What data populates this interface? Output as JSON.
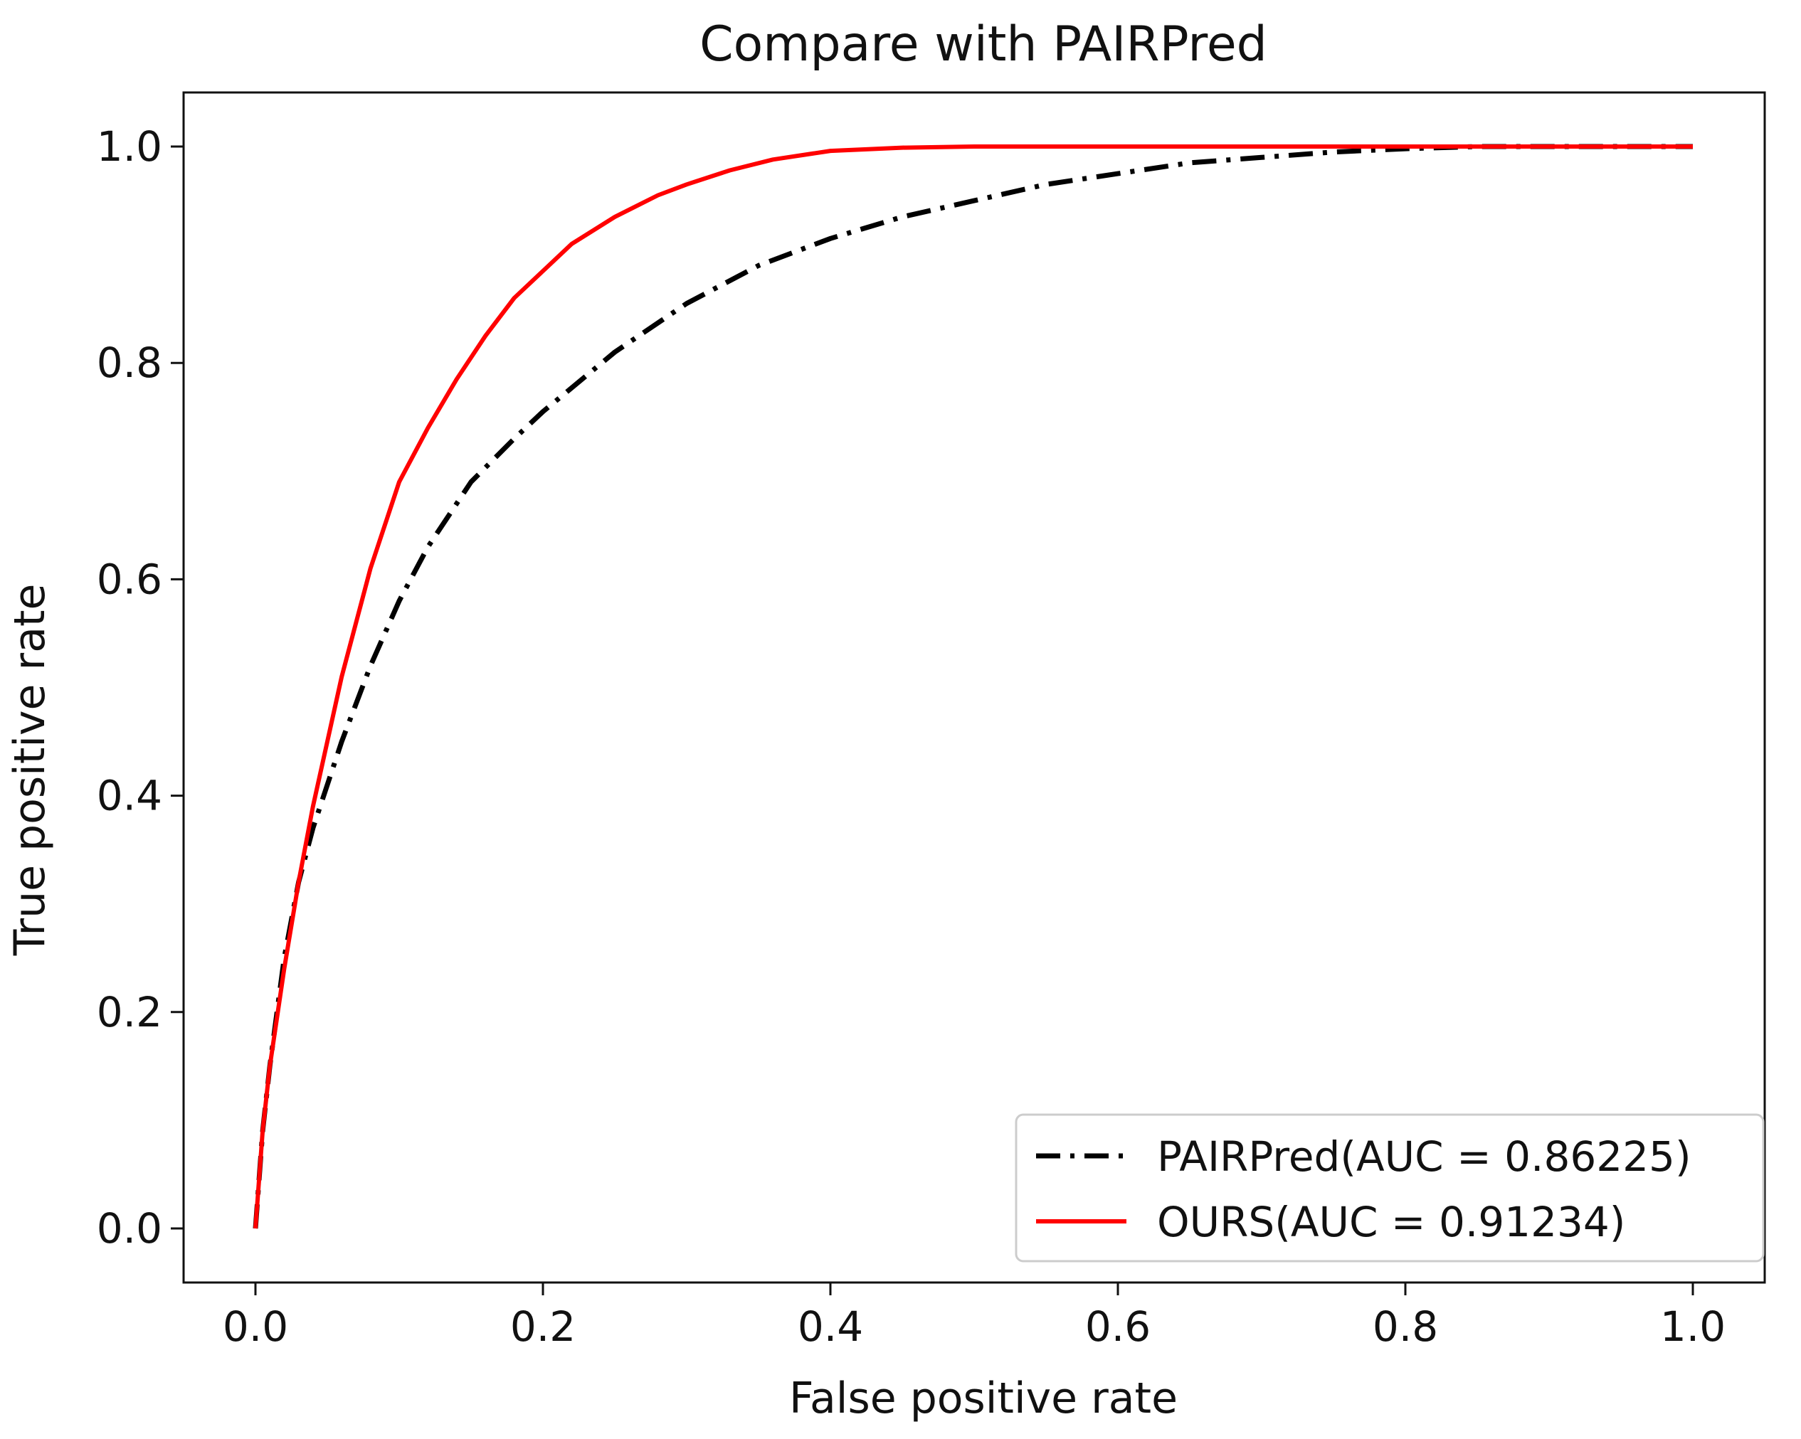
{
  "chart_data": {
    "type": "line",
    "title": "Compare with PAIRPred",
    "xlabel": "False positive rate",
    "ylabel": "True positive rate",
    "xlim": [
      -0.05,
      1.05
    ],
    "ylim": [
      -0.05,
      1.05
    ],
    "xticks": [
      "0.0",
      "0.2",
      "0.4",
      "0.6",
      "0.8",
      "1.0"
    ],
    "yticks": [
      "0.0",
      "0.2",
      "0.4",
      "0.6",
      "0.8",
      "1.0"
    ],
    "grid": false,
    "legend_position": "lower-right",
    "series": [
      {
        "name": "PAIRPred(AUC = 0.86225)",
        "color": "#000000",
        "style": "dashdot",
        "x": [
          0.0,
          0.005,
          0.01,
          0.02,
          0.03,
          0.04,
          0.06,
          0.08,
          0.1,
          0.12,
          0.15,
          0.18,
          0.2,
          0.25,
          0.3,
          0.35,
          0.4,
          0.45,
          0.5,
          0.55,
          0.6,
          0.65,
          0.7,
          0.75,
          0.8,
          0.85,
          0.9,
          1.0
        ],
        "y": [
          0.0,
          0.09,
          0.15,
          0.25,
          0.32,
          0.37,
          0.45,
          0.52,
          0.58,
          0.63,
          0.69,
          0.73,
          0.755,
          0.81,
          0.855,
          0.89,
          0.915,
          0.935,
          0.95,
          0.965,
          0.975,
          0.985,
          0.99,
          0.995,
          0.998,
          1.0,
          1.0,
          1.0
        ]
      },
      {
        "name": "OURS(AUC = 0.91234)",
        "color": "#ff0000",
        "style": "solid",
        "x": [
          0.0,
          0.005,
          0.01,
          0.02,
          0.03,
          0.04,
          0.05,
          0.06,
          0.08,
          0.1,
          0.12,
          0.14,
          0.16,
          0.18,
          0.2,
          0.22,
          0.25,
          0.28,
          0.3,
          0.33,
          0.36,
          0.4,
          0.45,
          0.5,
          0.6,
          0.7,
          0.8,
          1.0
        ],
        "y": [
          0.0,
          0.09,
          0.15,
          0.24,
          0.32,
          0.39,
          0.45,
          0.51,
          0.61,
          0.69,
          0.74,
          0.785,
          0.825,
          0.86,
          0.885,
          0.91,
          0.935,
          0.955,
          0.965,
          0.978,
          0.988,
          0.996,
          0.999,
          1.0,
          1.0,
          1.0,
          1.0,
          1.0
        ]
      }
    ]
  }
}
